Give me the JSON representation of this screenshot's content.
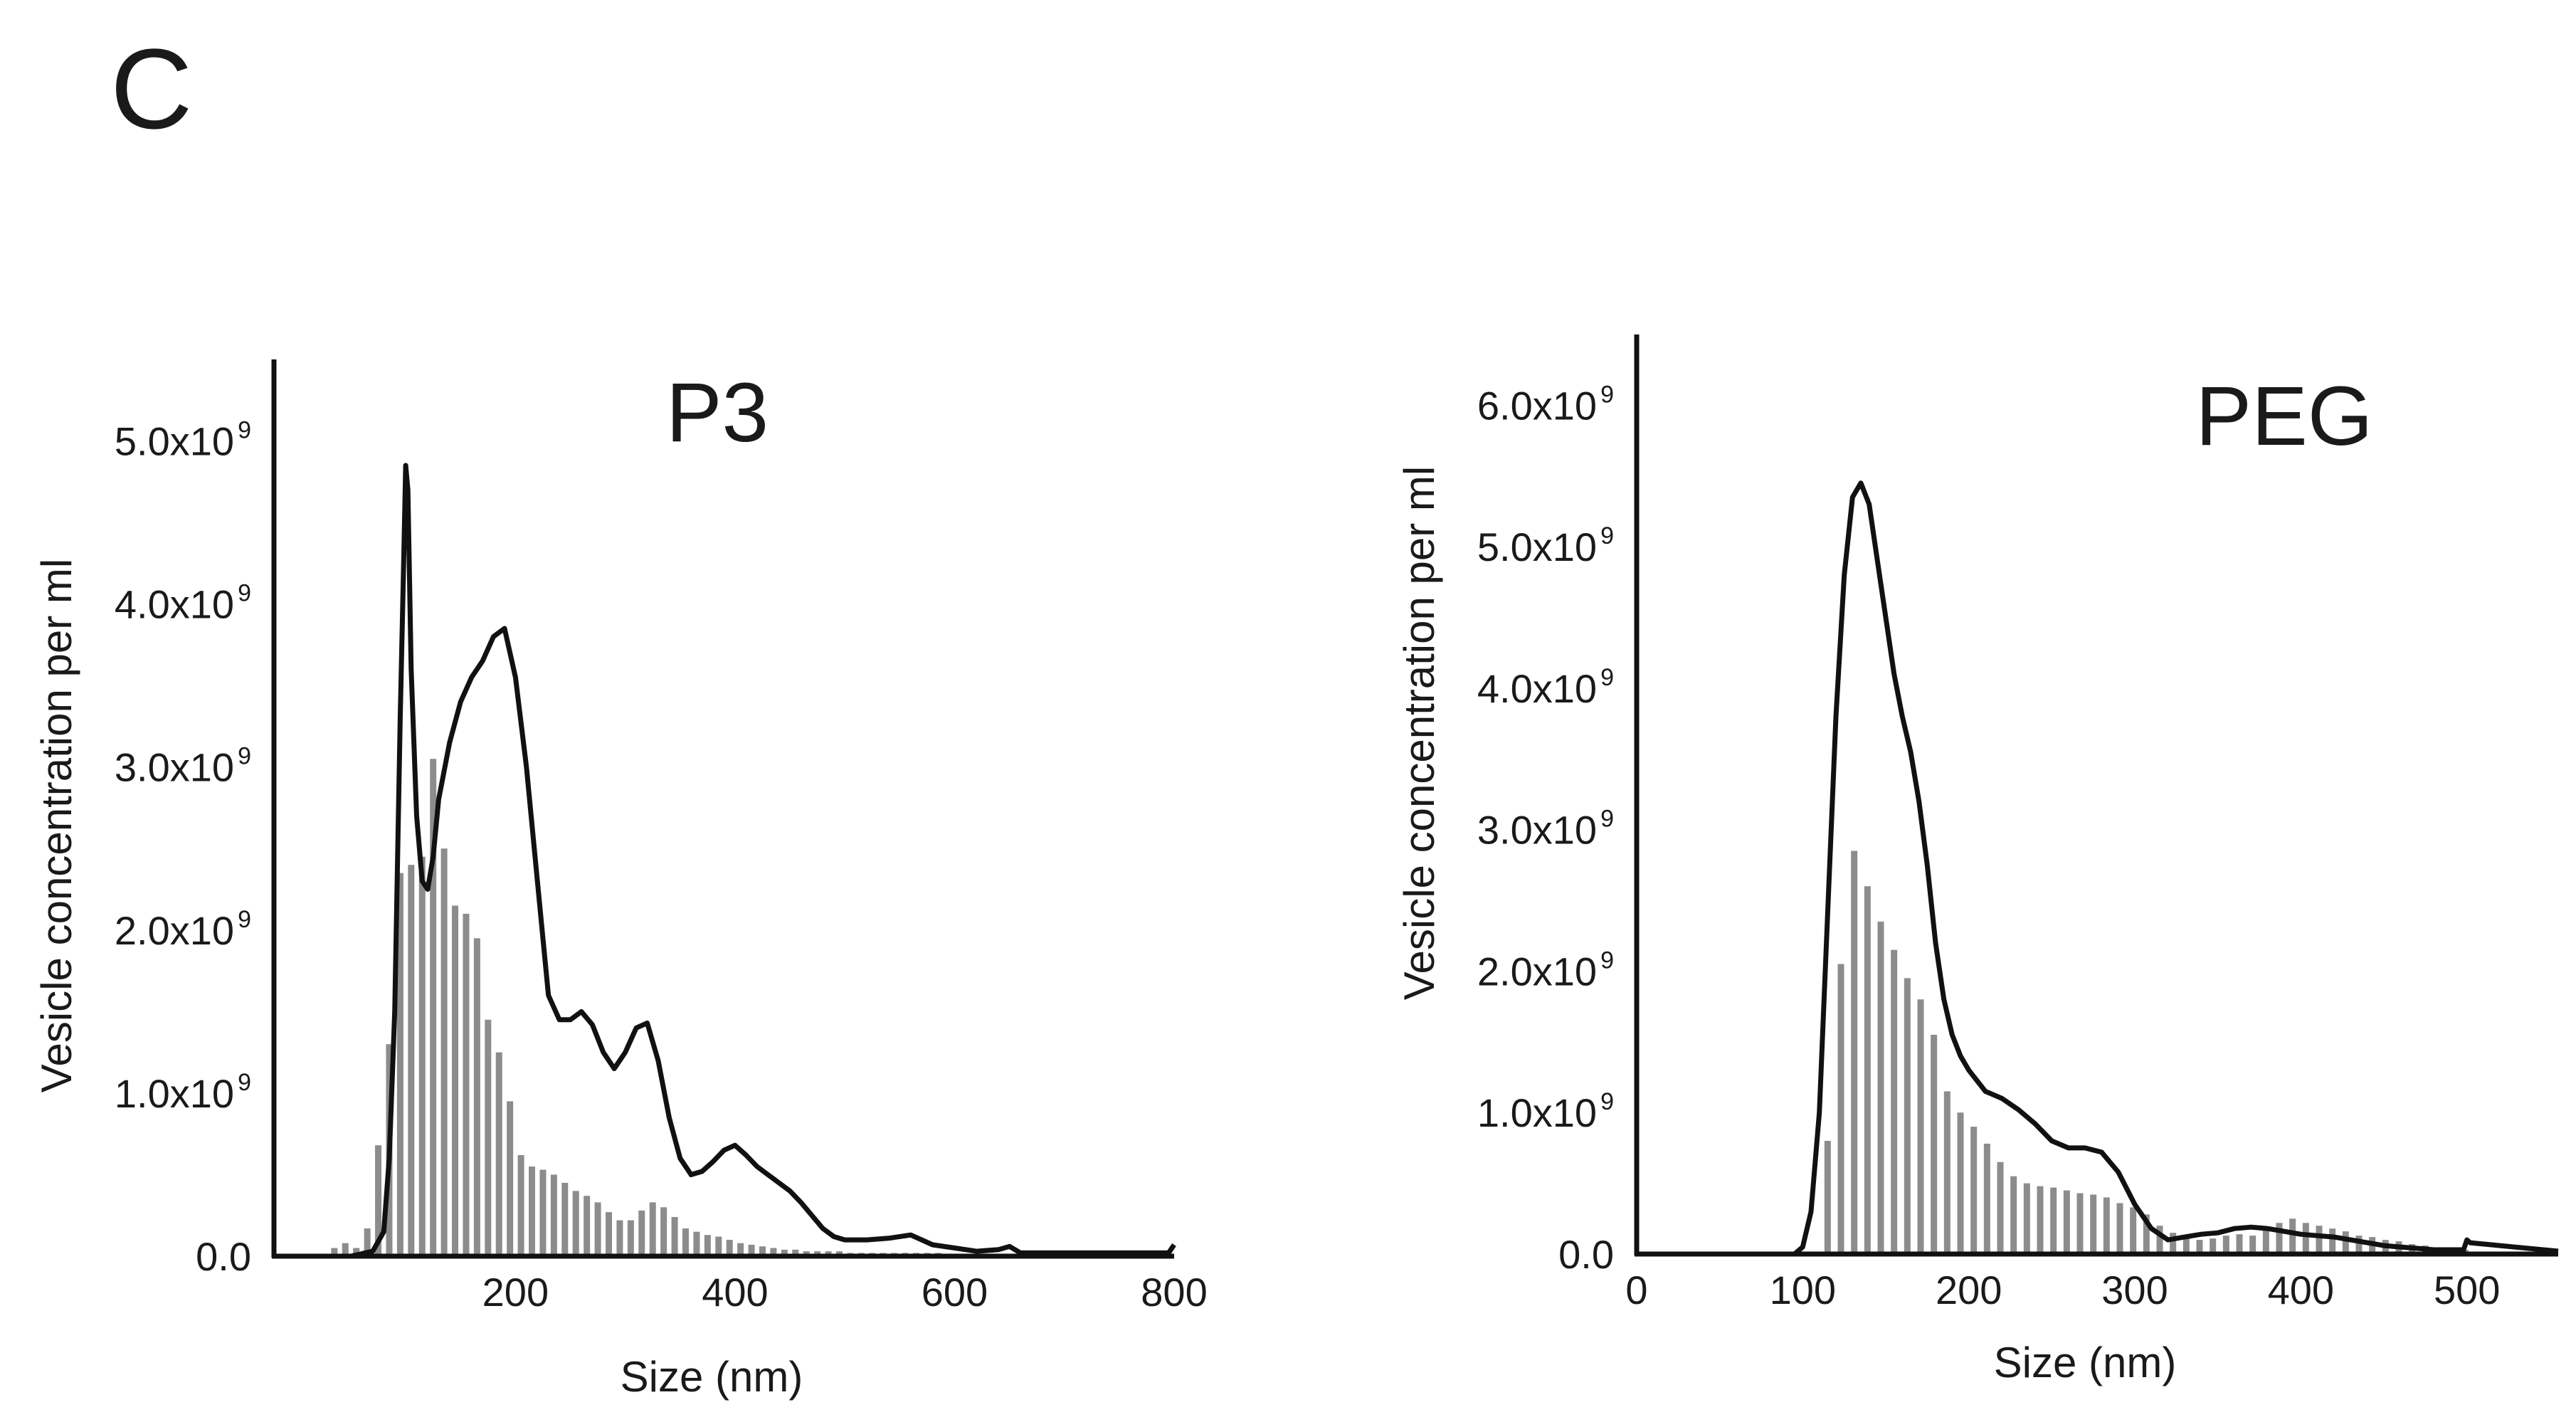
{
  "panel_letter": "C",
  "chart_data": [
    {
      "type": "bar",
      "overlay": "line",
      "title": "P3",
      "xlabel": "Size (nm)",
      "ylabel": "Vesicle concentration per ml",
      "xlim": [
        -20,
        800
      ],
      "ylim": [
        0,
        5500000000
      ],
      "xticks": [
        200,
        400,
        600,
        800
      ],
      "yticks": [
        {
          "value": 0,
          "label": "0.0",
          "exp": ""
        },
        {
          "value": 1000000000,
          "label": "1.0x10",
          "exp": "9"
        },
        {
          "value": 2000000000,
          "label": "2.0x10",
          "exp": "9"
        },
        {
          "value": 3000000000,
          "label": "3.0x10",
          "exp": "9"
        },
        {
          "value": 4000000000,
          "label": "4.0x10",
          "exp": "9"
        },
        {
          "value": 5000000000,
          "label": "5.0x10",
          "exp": "9"
        }
      ],
      "grid": false,
      "bar_color": "#8c8c8c",
      "line_color": "#111111",
      "bars": {
        "x": [
          35,
          45,
          55,
          65,
          75,
          85,
          95,
          105,
          115,
          125,
          135,
          145,
          155,
          165,
          175,
          185,
          195,
          205,
          215,
          225,
          235,
          245,
          255,
          265,
          275,
          285,
          295,
          305,
          315,
          325,
          335,
          345,
          355,
          365,
          375,
          385,
          395,
          405,
          415,
          425,
          435,
          445,
          455,
          465,
          475,
          485,
          495,
          505,
          515,
          525,
          535,
          545,
          555,
          565,
          575,
          585,
          595,
          605,
          615,
          625,
          635,
          645,
          655
        ],
        "y": [
          50000000.0,
          80000000.0,
          50000000.0,
          170000000.0,
          680000000.0,
          1300000000.0,
          2350000000.0,
          2400000000.0,
          2450000000.0,
          3050000000.0,
          2500000000.0,
          2150000000.0,
          2100000000.0,
          1950000000.0,
          1450000000.0,
          1250000000.0,
          950000000.0,
          620000000.0,
          550000000.0,
          530000000.0,
          500000000.0,
          450000000.0,
          400000000.0,
          370000000.0,
          330000000.0,
          270000000.0,
          220000000.0,
          220000000.0,
          280000000.0,
          330000000.0,
          300000000.0,
          240000000.0,
          170000000.0,
          150000000.0,
          130000000.0,
          120000000.0,
          100000000.0,
          80000000.0,
          70000000.0,
          60000000.0,
          50000000.0,
          40000000.0,
          40000000.0,
          30000000.0,
          30000000.0,
          30000000.0,
          30000000.0,
          20000000.0,
          20000000.0,
          20000000.0,
          20000000.0,
          20000000.0,
          20000000.0,
          20000000.0,
          20000000.0,
          20000000.0,
          10000000.0,
          10000000.0,
          10000000.0,
          10000000.0,
          10000000.0,
          10000000.0,
          10000000.0
        ]
      },
      "line": {
        "x": [
          50,
          70,
          80,
          85,
          90,
          95,
          98,
          100,
          102,
          105,
          110,
          115,
          120,
          125,
          130,
          140,
          150,
          160,
          170,
          180,
          190,
          200,
          210,
          220,
          230,
          240,
          250,
          260,
          270,
          280,
          290,
          300,
          310,
          320,
          330,
          340,
          350,
          360,
          370,
          380,
          390,
          400,
          410,
          420,
          430,
          440,
          450,
          460,
          470,
          480,
          490,
          500,
          520,
          540,
          560,
          580,
          600,
          620,
          640,
          650,
          660,
          700,
          750,
          795,
          798,
          800
        ],
        "y": [
          0,
          30000000.0,
          150000000.0,
          600000000.0,
          1500000000.0,
          3300000000.0,
          4200000000.0,
          4850000000.0,
          4700000000.0,
          3600000000.0,
          2700000000.0,
          2300000000.0,
          2250000000.0,
          2450000000.0,
          2800000000.0,
          3150000000.0,
          3400000000.0,
          3550000000.0,
          3650000000.0,
          3800000000.0,
          3850000000.0,
          3550000000.0,
          3000000000.0,
          2300000000.0,
          1600000000.0,
          1450000000.0,
          1450000000.0,
          1500000000.0,
          1420000000.0,
          1250000000.0,
          1150000000.0,
          1250000000.0,
          1400000000.0,
          1430000000.0,
          1200000000.0,
          850000000.0,
          600000000.0,
          500000000.0,
          520000000.0,
          580000000.0,
          650000000.0,
          680000000.0,
          620000000.0,
          550000000.0,
          500000000.0,
          450000000.0,
          400000000.0,
          330000000.0,
          250000000.0,
          170000000.0,
          120000000.0,
          100000000.0,
          100000000.0,
          110000000.0,
          130000000.0,
          70000000.0,
          50000000.0,
          30000000.0,
          40000000.0,
          60000000.0,
          20000000.0,
          20000000.0,
          20000000.0,
          20000000.0,
          50000000.0,
          70000000.0
        ]
      }
    },
    {
      "type": "bar",
      "overlay": "line",
      "title": "PEG",
      "xlabel": "Size (nm)",
      "ylabel": "Vesicle concentration per ml",
      "xlim": [
        0,
        555
      ],
      "ylim": [
        0,
        6500000000
      ],
      "xticks": [
        0,
        100,
        200,
        300,
        400,
        500
      ],
      "yticks": [
        {
          "value": 0,
          "label": "0.0",
          "exp": ""
        },
        {
          "value": 1000000000,
          "label": "1.0x10",
          "exp": "9"
        },
        {
          "value": 2000000000,
          "label": "2.0x10",
          "exp": "9"
        },
        {
          "value": 3000000000,
          "label": "3.0x10",
          "exp": "9"
        },
        {
          "value": 4000000000,
          "label": "4.0x10",
          "exp": "9"
        },
        {
          "value": 5000000000,
          "label": "5.0x10",
          "exp": "9"
        },
        {
          "value": 6000000000,
          "label": "6.0x10",
          "exp": "9"
        }
      ],
      "grid": false,
      "bar_color": "#8c8c8c",
      "line_color": "#111111",
      "bars": {
        "x": [
          115,
          123,
          131,
          139,
          147,
          155,
          163,
          171,
          179,
          187,
          195,
          203,
          211,
          219,
          227,
          235,
          243,
          251,
          259,
          267,
          275,
          283,
          291,
          299,
          307,
          315,
          323,
          331,
          339,
          347,
          355,
          363,
          371,
          379,
          387,
          395,
          403,
          411,
          419,
          427,
          435,
          443,
          451,
          459,
          467,
          475,
          483,
          491,
          499
        ],
        "y": [
          800000000.0,
          2050000000.0,
          2850000000.0,
          2600000000.0,
          2350000000.0,
          2150000000.0,
          1950000000.0,
          1800000000.0,
          1550000000.0,
          1150000000.0,
          1000000000.0,
          900000000.0,
          780000000.0,
          650000000.0,
          550000000.0,
          500000000.0,
          480000000.0,
          470000000.0,
          450000000.0,
          430000000.0,
          420000000.0,
          400000000.0,
          360000000.0,
          330000000.0,
          280000000.0,
          200000000.0,
          150000000.0,
          120000000.0,
          100000000.0,
          110000000.0,
          130000000.0,
          140000000.0,
          130000000.0,
          170000000.0,
          220000000.0,
          250000000.0,
          220000000.0,
          200000000.0,
          180000000.0,
          160000000.0,
          130000000.0,
          120000000.0,
          100000000.0,
          90000000.0,
          70000000.0,
          60000000.0,
          40000000.0,
          40000000.0,
          30000000.0
        ]
      },
      "line": {
        "x": [
          0,
          95,
          100,
          105,
          110,
          115,
          120,
          125,
          130,
          135,
          140,
          145,
          150,
          155,
          160,
          165,
          170,
          175,
          180,
          185,
          190,
          195,
          200,
          210,
          220,
          230,
          240,
          250,
          260,
          270,
          280,
          290,
          300,
          310,
          320,
          330,
          340,
          350,
          360,
          370,
          380,
          390,
          400,
          410,
          420,
          430,
          440,
          450,
          460,
          470,
          480,
          490,
          498,
          500,
          502,
          555
        ],
        "y": [
          0,
          0,
          50000000.0,
          300000000.0,
          1000000000.0,
          2400000000.0,
          3800000000.0,
          4800000000.0,
          5350000000.0,
          5450000000.0,
          5300000000.0,
          4900000000.0,
          4500000000.0,
          4100000000.0,
          3800000000.0,
          3550000000.0,
          3200000000.0,
          2750000000.0,
          2200000000.0,
          1800000000.0,
          1550000000.0,
          1400000000.0,
          1300000000.0,
          1150000000.0,
          1100000000.0,
          1020000000.0,
          920000000.0,
          800000000.0,
          750000000.0,
          750000000.0,
          720000000.0,
          580000000.0,
          350000000.0,
          180000000.0,
          100000000.0,
          120000000.0,
          140000000.0,
          150000000.0,
          180000000.0,
          190000000.0,
          180000000.0,
          160000000.0,
          140000000.0,
          130000000.0,
          120000000.0,
          100000000.0,
          80000000.0,
          60000000.0,
          50000000.0,
          40000000.0,
          30000000.0,
          30000000.0,
          30000000.0,
          100000000.0,
          80000000.0,
          20000000.0
        ]
      }
    }
  ]
}
